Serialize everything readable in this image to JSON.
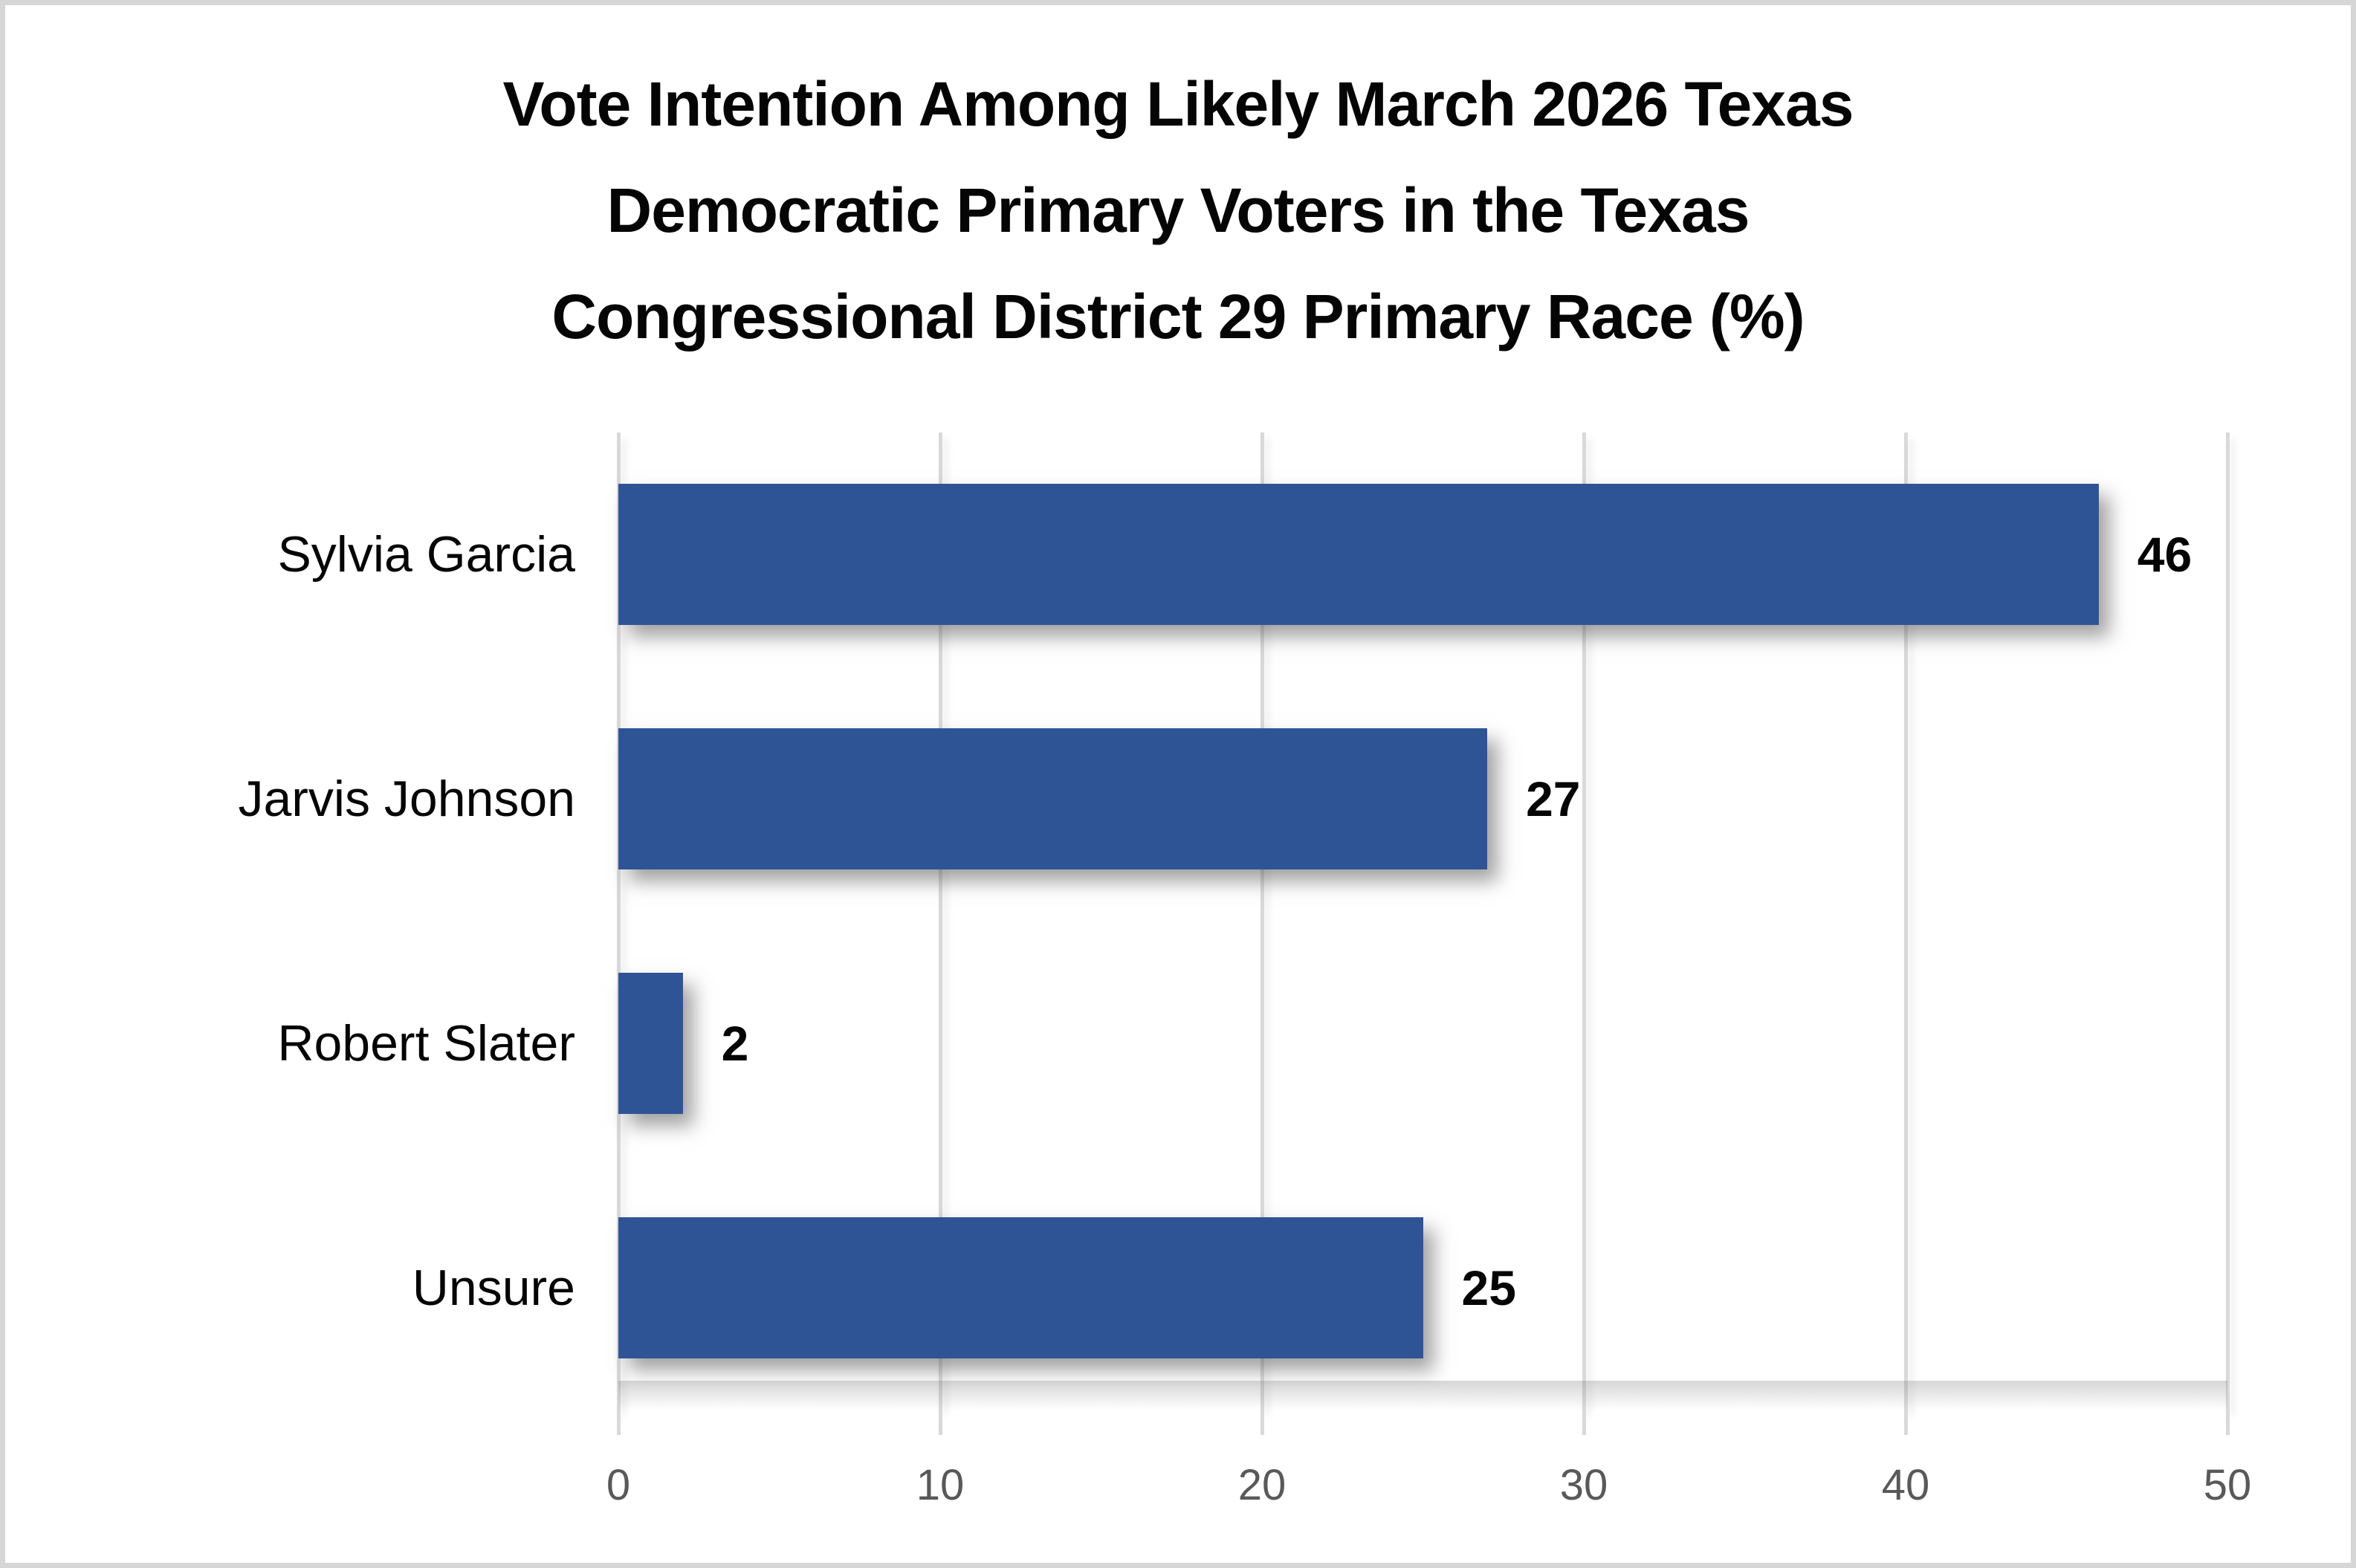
{
  "chart_data": {
    "type": "bar",
    "orientation": "horizontal",
    "title": "Vote Intention Among Likely March 2026 Texas Democratic Primary Voters in the Texas Congressional District 29 Primary Race (%)",
    "title_lines": [
      "Vote Intention Among Likely March 2026 Texas",
      "Democratic Primary Voters in the Texas",
      "Congressional District 29 Primary Race (%)"
    ],
    "categories": [
      "Sylvia Garcia",
      "Jarvis Johnson",
      "Robert Slater",
      "Unsure"
    ],
    "values": [
      46,
      27,
      2,
      25
    ],
    "data_labels": [
      "46",
      "27",
      "2",
      "25"
    ],
    "xticks": [
      "0",
      "10",
      "20",
      "30",
      "40",
      "50"
    ],
    "xtick_values": [
      0,
      10,
      20,
      30,
      40,
      50
    ],
    "xlim": [
      0,
      50
    ],
    "grid": true,
    "legend": false,
    "xlabel": "",
    "ylabel": "",
    "colors": {
      "bar": "#2F5496",
      "gridline": "#D9D9D9",
      "tick_label": "#595959",
      "text": "#050505",
      "frame_border": "#D6D6D6",
      "background": "#FFFFFF"
    }
  }
}
